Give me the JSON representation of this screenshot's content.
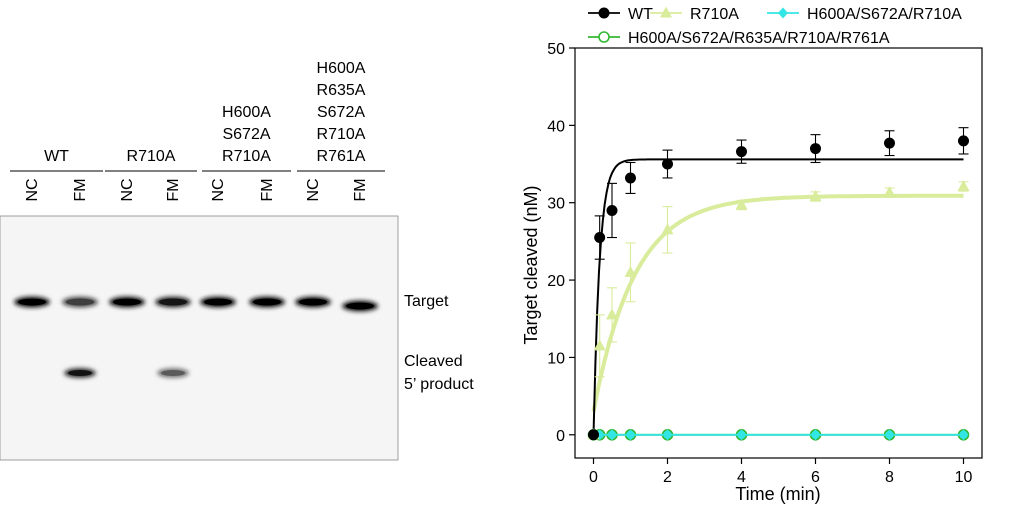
{
  "gel": {
    "groups": [
      {
        "label_lines": [
          "WT"
        ]
      },
      {
        "label_lines": [
          "R710A"
        ]
      },
      {
        "label_lines": [
          "H600A",
          "S672A",
          "R710A"
        ]
      },
      {
        "label_lines": [
          "H600A",
          "R635A",
          "S672A",
          "R710A",
          "R761A"
        ]
      }
    ],
    "lanes": [
      "NC",
      "FM",
      "NC",
      "FM",
      "NC",
      "FM",
      "NC",
      "FM"
    ],
    "target_band_intensity": [
      1.0,
      0.55,
      1.0,
      0.85,
      1.0,
      1.0,
      1.0,
      1.0
    ],
    "product_band_intensity": [
      0,
      0.95,
      0,
      0.5,
      0,
      0,
      0,
      0
    ],
    "labels": {
      "target": "Target",
      "cleaved_1": "Cleaved",
      "cleaved_2": "5’ product"
    }
  },
  "chart_data": {
    "type": "line",
    "xlabel": "Time (min)",
    "ylabel": "Target cleaved (nM)",
    "xlim": [
      -0.5,
      10.5
    ],
    "ylim": [
      -3,
      50
    ],
    "xticks": [
      0,
      2,
      4,
      6,
      8,
      10
    ],
    "yticks": [
      0,
      10,
      20,
      30,
      40,
      50
    ],
    "grid": false,
    "legend_position": "top",
    "series": [
      {
        "name": "WT",
        "color": "#000000",
        "marker": "filled-circle",
        "x": [
          0,
          0.167,
          0.5,
          1,
          2,
          4,
          6,
          8,
          10
        ],
        "y": [
          0,
          25.5,
          29,
          33.2,
          35,
          36.6,
          37,
          37.7,
          38
        ],
        "err": [
          0,
          2.8,
          3.5,
          2.0,
          1.8,
          1.5,
          1.8,
          1.6,
          1.7
        ],
        "fit": {
          "plateau": 35.6,
          "rate": 6.0
        }
      },
      {
        "name": "R710A",
        "color": "#d8ec9c",
        "marker": "filled-triangle",
        "x": [
          0,
          0.167,
          0.5,
          1,
          2,
          4,
          6,
          8,
          10
        ],
        "y": [
          0,
          11.5,
          15.5,
          21,
          26.5,
          29.7,
          30.8,
          31.3,
          32.1
        ],
        "err": [
          0,
          4.0,
          3.5,
          3.8,
          3.0,
          0.6,
          0.6,
          0.6,
          0.6
        ],
        "fit": {
          "plateau": 30.9,
          "rate": 0.9,
          "y0": 3
        }
      },
      {
        "name": "H600A/S672A/R710A",
        "color": "#33e6e6",
        "marker": "filled-diamond",
        "x": [
          0,
          0.167,
          0.5,
          1,
          2,
          4,
          6,
          8,
          10
        ],
        "y": [
          0,
          0,
          0,
          0,
          0,
          0,
          0,
          0,
          0
        ]
      },
      {
        "name": "H600A/S672A/R635A/R710A/R761A",
        "color": "#33b833",
        "marker": "open-circle",
        "x": [
          0,
          0.167,
          0.5,
          1,
          2,
          4,
          6,
          8,
          10
        ],
        "y": [
          0,
          0,
          0,
          0,
          0,
          0,
          0,
          0,
          0
        ]
      }
    ]
  }
}
